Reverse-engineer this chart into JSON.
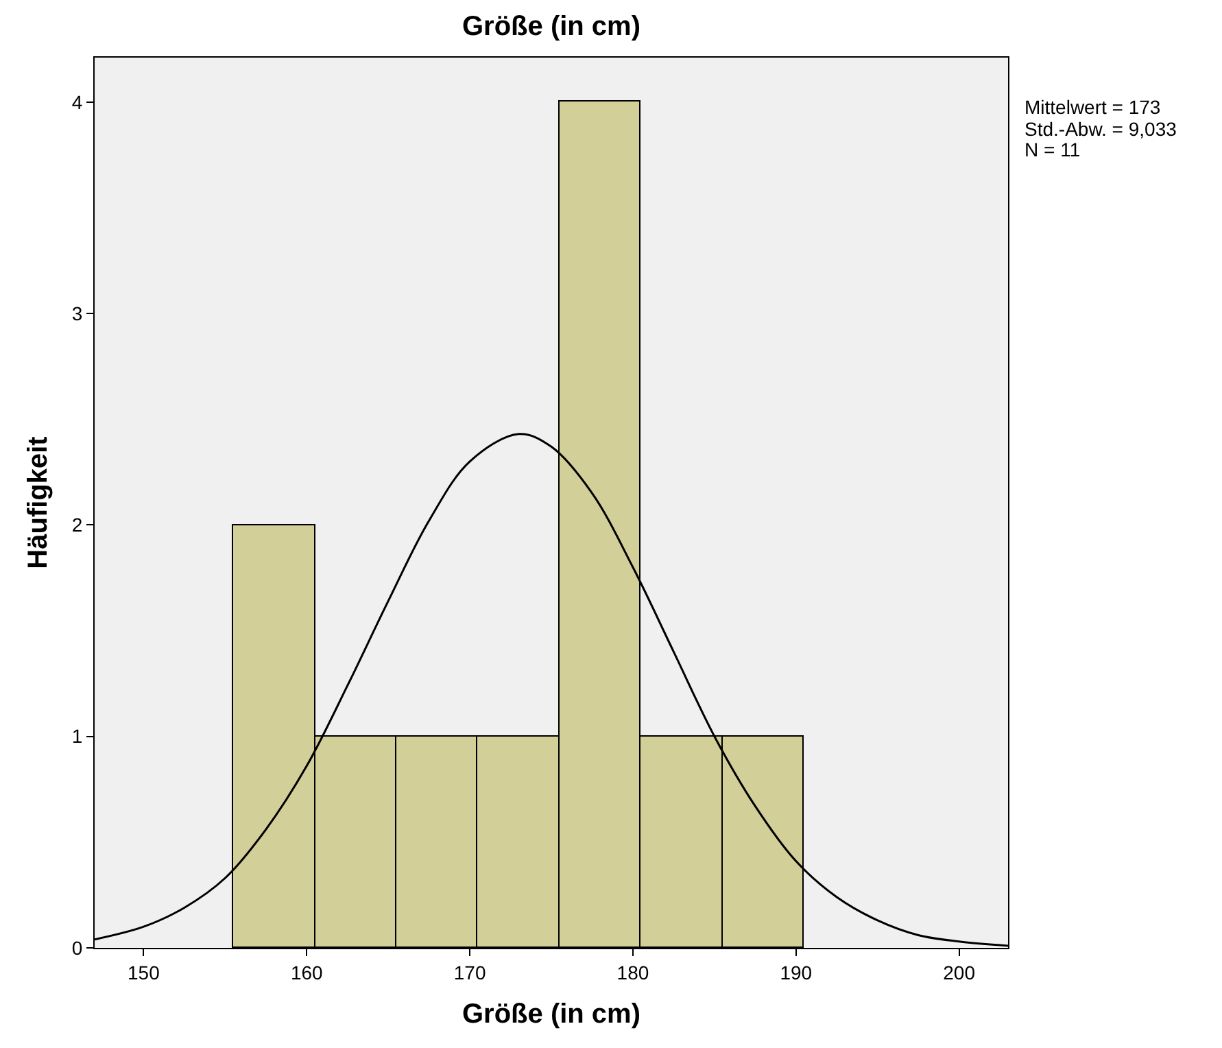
{
  "chart_data": {
    "type": "histogram",
    "title": "Größe (in cm)",
    "xlabel": "Größe (in cm)",
    "ylabel": "Häufigkeit",
    "bins": [
      155.5,
      160.5,
      165.5,
      170.5,
      175.5,
      180.5,
      185.5,
      190.5
    ],
    "values": [
      2,
      1,
      1,
      1,
      4,
      1,
      1
    ],
    "color": "#d3cf99",
    "series": [
      {
        "type": "line",
        "color": "#000000",
        "x": [
          147,
          150,
          152.5,
          155,
          157.5,
          160,
          162.5,
          165,
          167.5,
          170,
          173,
          175,
          177.5,
          180,
          182.5,
          185,
          187.5,
          190,
          192.5,
          195,
          197.5,
          200,
          203
        ],
        "values": [
          0.04,
          0.1,
          0.19,
          0.33,
          0.56,
          0.86,
          1.24,
          1.64,
          2.02,
          2.3,
          2.43,
          2.37,
          2.15,
          1.8,
          1.4,
          1.0,
          0.67,
          0.41,
          0.24,
          0.13,
          0.06,
          0.03,
          0.01
        ]
      }
    ],
    "xlim": [
      147,
      203
    ],
    "xticks": [
      150,
      160,
      170,
      180,
      190,
      200
    ],
    "ylim": [
      0,
      4.21
    ],
    "yticks": [
      0,
      1,
      2,
      3,
      4
    ],
    "grid": false,
    "annotations": [
      "Mittelwert = 173",
      "Std.-Abw. = 9,033",
      "N = 11"
    ]
  }
}
